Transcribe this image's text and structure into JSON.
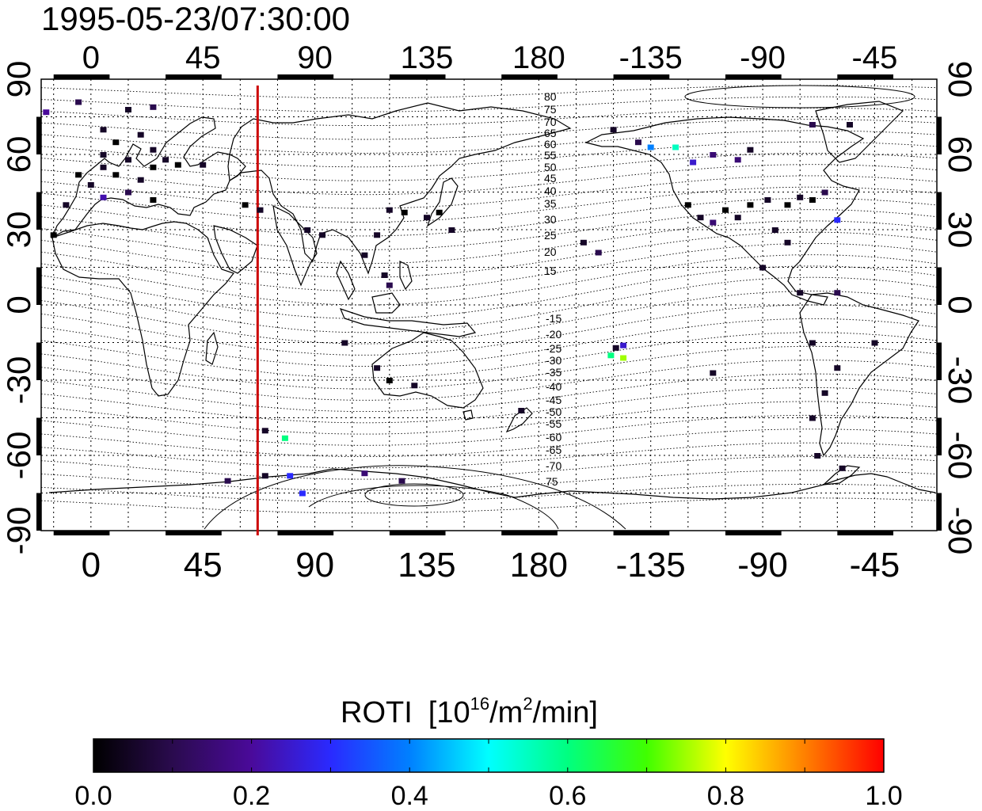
{
  "title": "1995-05-23/07:30:00",
  "map": {
    "top_lon_ticks": [
      "0",
      "45",
      "90",
      "135",
      "180",
      "-135",
      "-90",
      "-45"
    ],
    "bottom_lon_ticks": [
      "0",
      "45",
      "90",
      "135",
      "180",
      "-135",
      "-90",
      "-45"
    ],
    "lat_ticks": [
      "90",
      "60",
      "30",
      "0",
      "-30",
      "-60",
      "-90"
    ],
    "lon_range": [
      -20,
      340
    ],
    "lat_range": [
      -90,
      90
    ],
    "terminator_longitude": 67,
    "grid": true,
    "magnetic_lat_labels_north": [
      "80",
      "75",
      "70",
      "65",
      "60",
      "55",
      "50",
      "45",
      "40",
      "35",
      "30",
      "25",
      "20",
      "15"
    ],
    "magnetic_lat_labels_south": [
      "-15",
      "-20",
      "-25",
      "-30",
      "-35",
      "-40",
      "-45",
      "-50",
      "-55",
      "-60",
      "-65",
      "-70",
      "75"
    ],
    "line_color": "#cc0000"
  },
  "colorbar": {
    "title": "ROTI",
    "unit_pre": "[10",
    "unit_sup1": "16",
    "unit_mid": "/m",
    "unit_sup2": "2",
    "unit_post": "/min]",
    "min": 0.0,
    "max": 1.0,
    "ticks": [
      "0.0",
      "0.2",
      "0.4",
      "0.6",
      "0.8",
      "1.0"
    ],
    "stops": [
      "#000000",
      "#2a0b4e",
      "#4a0a9a",
      "#2a2aff",
      "#0080ff",
      "#00ffff",
      "#00ff80",
      "#40ff00",
      "#ffff00",
      "#ff8000",
      "#ff0000"
    ]
  },
  "chart_data": {
    "type": "scatter",
    "x_name": "longitude",
    "y_name": "latitude",
    "points": [
      {
        "lon": -18,
        "lat": 77,
        "v": 0.2
      },
      {
        "lon": -5,
        "lat": 81,
        "v": 0.1
      },
      {
        "lon": 15,
        "lat": 78,
        "v": 0.05
      },
      {
        "lon": 25,
        "lat": 79,
        "v": 0.1
      },
      {
        "lon": 5,
        "lat": 70,
        "v": 0.05
      },
      {
        "lon": 10,
        "lat": 65,
        "v": 0.0
      },
      {
        "lon": 20,
        "lat": 68,
        "v": 0.05
      },
      {
        "lon": 25,
        "lat": 62,
        "v": 0.05
      },
      {
        "lon": 5,
        "lat": 60,
        "v": 0.05
      },
      {
        "lon": 15,
        "lat": 58,
        "v": 0.05
      },
      {
        "lon": 25,
        "lat": 55,
        "v": 0.0
      },
      {
        "lon": 5,
        "lat": 55,
        "v": 0.05
      },
      {
        "lon": 10,
        "lat": 52,
        "v": 0.0
      },
      {
        "lon": 20,
        "lat": 50,
        "v": 0.05
      },
      {
        "lon": -5,
        "lat": 52,
        "v": 0.0
      },
      {
        "lon": 0,
        "lat": 48,
        "v": 0.05
      },
      {
        "lon": 15,
        "lat": 45,
        "v": 0.1
      },
      {
        "lon": 5,
        "lat": 43,
        "v": 0.22
      },
      {
        "lon": 25,
        "lat": 42,
        "v": 0.0
      },
      {
        "lon": 30,
        "lat": 58,
        "v": 0.05
      },
      {
        "lon": 35,
        "lat": 56,
        "v": 0.0
      },
      {
        "lon": 45,
        "lat": 56,
        "v": 0.05
      },
      {
        "lon": -10,
        "lat": 40,
        "v": 0.05
      },
      {
        "lon": -15,
        "lat": 28,
        "v": 0.0
      },
      {
        "lon": 68,
        "lat": 38,
        "v": 0.05
      },
      {
        "lon": 62,
        "lat": 40,
        "v": 0.0
      },
      {
        "lon": 87,
        "lat": 30,
        "v": 0.05
      },
      {
        "lon": 93,
        "lat": 28,
        "v": 0.05
      },
      {
        "lon": 110,
        "lat": 20,
        "v": 0.05
      },
      {
        "lon": 115,
        "lat": 28,
        "v": 0.05
      },
      {
        "lon": 120,
        "lat": 38,
        "v": 0.05
      },
      {
        "lon": 126,
        "lat": 37,
        "v": 0.0
      },
      {
        "lon": 135,
        "lat": 35,
        "v": 0.05
      },
      {
        "lon": 140,
        "lat": 37,
        "v": 0.0
      },
      {
        "lon": 145,
        "lat": 30,
        "v": 0.05
      },
      {
        "lon": 118,
        "lat": 12,
        "v": 0.05
      },
      {
        "lon": 120,
        "lat": 8,
        "v": 0.1
      },
      {
        "lon": 102,
        "lat": -15,
        "v": 0.05
      },
      {
        "lon": 115,
        "lat": -25,
        "v": 0.05
      },
      {
        "lon": 120,
        "lat": -30,
        "v": 0.0
      },
      {
        "lon": 130,
        "lat": -32,
        "v": 0.05
      },
      {
        "lon": 173,
        "lat": -42,
        "v": 0.05
      },
      {
        "lon": 70,
        "lat": -50,
        "v": 0.05
      },
      {
        "lon": 78,
        "lat": -53,
        "v": 0.6
      },
      {
        "lon": 55,
        "lat": -70,
        "v": 0.1
      },
      {
        "lon": 70,
        "lat": -68,
        "v": 0.05
      },
      {
        "lon": 80,
        "lat": -68,
        "v": 0.3
      },
      {
        "lon": 85,
        "lat": -75,
        "v": 0.3
      },
      {
        "lon": 110,
        "lat": -67,
        "v": 0.15
      },
      {
        "lon": 125,
        "lat": -70,
        "v": 0.1
      },
      {
        "lon": -162,
        "lat": 25,
        "v": 0.05
      },
      {
        "lon": -156,
        "lat": 21,
        "v": 0.1
      },
      {
        "lon": -149,
        "lat": -17,
        "v": 0.05
      },
      {
        "lon": -146,
        "lat": -16,
        "v": 0.25
      },
      {
        "lon": -151,
        "lat": -20,
        "v": 0.6
      },
      {
        "lon": -146,
        "lat": -21,
        "v": 0.75
      },
      {
        "lon": -110,
        "lat": -27,
        "v": 0.05
      },
      {
        "lon": -150,
        "lat": 70,
        "v": 0.05
      },
      {
        "lon": -140,
        "lat": 65,
        "v": 0.1
      },
      {
        "lon": -135,
        "lat": 63,
        "v": 0.4
      },
      {
        "lon": -125,
        "lat": 63,
        "v": 0.55
      },
      {
        "lon": -118,
        "lat": 57,
        "v": 0.25
      },
      {
        "lon": -110,
        "lat": 60,
        "v": 0.15
      },
      {
        "lon": -100,
        "lat": 58,
        "v": 0.15
      },
      {
        "lon": -95,
        "lat": 62,
        "v": 0.05
      },
      {
        "lon": -70,
        "lat": 72,
        "v": 0.1
      },
      {
        "lon": -55,
        "lat": 72,
        "v": 0.05
      },
      {
        "lon": -120,
        "lat": 40,
        "v": 0.0
      },
      {
        "lon": -115,
        "lat": 35,
        "v": 0.05
      },
      {
        "lon": -110,
        "lat": 33,
        "v": 0.15
      },
      {
        "lon": -105,
        "lat": 38,
        "v": 0.0
      },
      {
        "lon": -100,
        "lat": 35,
        "v": 0.05
      },
      {
        "lon": -95,
        "lat": 40,
        "v": 0.0
      },
      {
        "lon": -88,
        "lat": 42,
        "v": 0.05
      },
      {
        "lon": -80,
        "lat": 40,
        "v": 0.0
      },
      {
        "lon": -75,
        "lat": 43,
        "v": 0.05
      },
      {
        "lon": -70,
        "lat": 42,
        "v": 0.0
      },
      {
        "lon": -65,
        "lat": 45,
        "v": 0.1
      },
      {
        "lon": -60,
        "lat": 34,
        "v": 0.3
      },
      {
        "lon": -85,
        "lat": 30,
        "v": 0.05
      },
      {
        "lon": -80,
        "lat": 25,
        "v": 0.05
      },
      {
        "lon": -90,
        "lat": 15,
        "v": 0.05
      },
      {
        "lon": -75,
        "lat": 5,
        "v": 0.05
      },
      {
        "lon": -60,
        "lat": 5,
        "v": 0.1
      },
      {
        "lon": -70,
        "lat": -15,
        "v": 0.05
      },
      {
        "lon": -45,
        "lat": -15,
        "v": 0.05
      },
      {
        "lon": -60,
        "lat": -25,
        "v": 0.05
      },
      {
        "lon": -65,
        "lat": -35,
        "v": 0.05
      },
      {
        "lon": -70,
        "lat": -45,
        "v": 0.05
      },
      {
        "lon": -68,
        "lat": -60,
        "v": 0.05
      },
      {
        "lon": -58,
        "lat": -65,
        "v": 0.05
      }
    ]
  }
}
